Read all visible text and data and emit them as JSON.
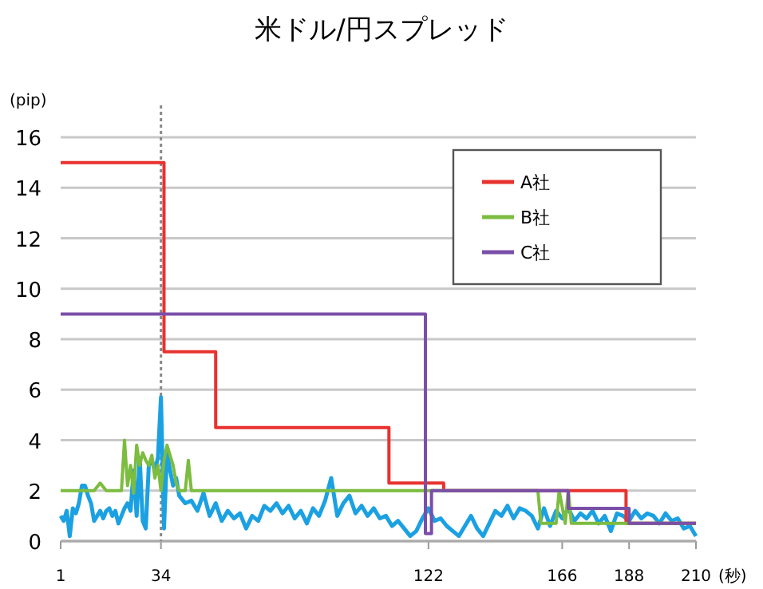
{
  "chart_data": {
    "type": "line",
    "title": "米ドル/円スプレッド",
    "ylabel": "(pip)",
    "xlabel": "(秒)",
    "xlim": [
      1,
      210
    ],
    "xticks": [
      1,
      34,
      122,
      166,
      188,
      210
    ],
    "ylim": [
      0,
      16
    ],
    "yticks": [
      0,
      2,
      4,
      6,
      8,
      10,
      12,
      14,
      16
    ],
    "grid": "y",
    "legend": "top right",
    "ref_lines": [
      {
        "axis": "x",
        "value": 34,
        "color": "#888888",
        "line_style": "dotted"
      }
    ],
    "series": [
      {
        "color": "#1ba1e2",
        "x": [
          1,
          2,
          3,
          4,
          5,
          6,
          7,
          8,
          9,
          10,
          11,
          12,
          13,
          14,
          15,
          16,
          17,
          18,
          19,
          20,
          21,
          22,
          23,
          24,
          25,
          26,
          27,
          28,
          29,
          30,
          31,
          32,
          33,
          34,
          35,
          36,
          37,
          38,
          39,
          40,
          42,
          44,
          46,
          48,
          50,
          52,
          54,
          56,
          58,
          60,
          62,
          64,
          66,
          68,
          70,
          72,
          74,
          76,
          78,
          80,
          82,
          84,
          86,
          88,
          90,
          92,
          94,
          96,
          98,
          100,
          102,
          104,
          106,
          108,
          110,
          112,
          114,
          116,
          118,
          120,
          122,
          124,
          126,
          128,
          130,
          132,
          134,
          136,
          138,
          140,
          142,
          144,
          146,
          148,
          150,
          152,
          154,
          156,
          158,
          160,
          162,
          164,
          166,
          168,
          170,
          172,
          174,
          176,
          178,
          180,
          182,
          184,
          186,
          188,
          190,
          192,
          194,
          196,
          198,
          200,
          202,
          204,
          206,
          208,
          210
        ],
        "values": [
          1.0,
          0.8,
          1.2,
          0.2,
          1.3,
          1.1,
          1.5,
          2.2,
          2.2,
          1.8,
          1.5,
          0.8,
          1.0,
          1.2,
          0.9,
          1.2,
          1.3,
          1.0,
          1.2,
          0.7,
          1.0,
          1.3,
          1.5,
          1.2,
          2.8,
          1.0,
          3.3,
          0.8,
          0.5,
          3.0,
          3.2,
          2.8,
          3.3,
          5.7,
          0.5,
          3.5,
          2.8,
          2.2,
          2.5,
          1.8,
          1.5,
          1.6,
          1.2,
          1.9,
          1.0,
          1.5,
          0.8,
          1.2,
          0.9,
          1.1,
          0.5,
          1.0,
          0.8,
          1.4,
          1.2,
          1.5,
          1.1,
          1.4,
          0.9,
          1.2,
          0.7,
          1.3,
          1.0,
          1.6,
          2.5,
          1.0,
          1.5,
          1.8,
          1.1,
          1.4,
          1.0,
          1.3,
          0.9,
          1.0,
          0.6,
          0.8,
          0.5,
          0.2,
          0.4,
          0.9,
          1.3,
          0.8,
          0.9,
          0.6,
          0.4,
          0.2,
          0.6,
          1.0,
          0.5,
          0.2,
          0.7,
          1.2,
          1.0,
          1.4,
          0.9,
          1.3,
          1.2,
          1.0,
          0.5,
          1.3,
          0.6,
          1.2,
          0.9,
          1.3,
          0.8,
          1.1,
          0.9,
          1.2,
          0.7,
          1.0,
          0.4,
          1.1,
          1.0,
          0.8,
          1.2,
          0.9,
          1.1,
          1.0,
          0.7,
          1.1,
          0.8,
          0.9,
          0.5,
          0.6,
          0.2
        ]
      },
      {
        "name": "A社",
        "color": "#e8322f",
        "type": "step",
        "x": [
          1,
          35,
          52,
          109,
          127,
          187,
          210
        ],
        "values": [
          15,
          7.5,
          4.5,
          2.3,
          2.0,
          0.7,
          0.7
        ]
      },
      {
        "name": "B社",
        "color": "#7cbc3f",
        "x": [
          1,
          12,
          14,
          16,
          21,
          22,
          23,
          24,
          25,
          26,
          27,
          28,
          29,
          30,
          31,
          32,
          33,
          34,
          35,
          36,
          37,
          38,
          39,
          40,
          42,
          43,
          44,
          158,
          159,
          164,
          165,
          167,
          168,
          169,
          210
        ],
        "values": [
          2,
          2,
          2.3,
          2,
          2,
          4,
          2.2,
          3,
          1.9,
          3.8,
          3.0,
          3.5,
          3.2,
          3.0,
          3.4,
          2.5,
          3.0,
          2.0,
          3.2,
          3.8,
          3.4,
          3.0,
          2.3,
          2.0,
          2.0,
          3.2,
          2.0,
          2.0,
          0.7,
          0.7,
          2.0,
          0.7,
          2.0,
          0.7,
          0.7
        ]
      },
      {
        "name": "C社",
        "color": "#7a4fa8",
        "type": "step",
        "x": [
          1,
          121,
          123,
          168,
          188,
          210
        ],
        "values": [
          9,
          0.3,
          2.0,
          1.3,
          0.7,
          0.7
        ]
      }
    ]
  }
}
